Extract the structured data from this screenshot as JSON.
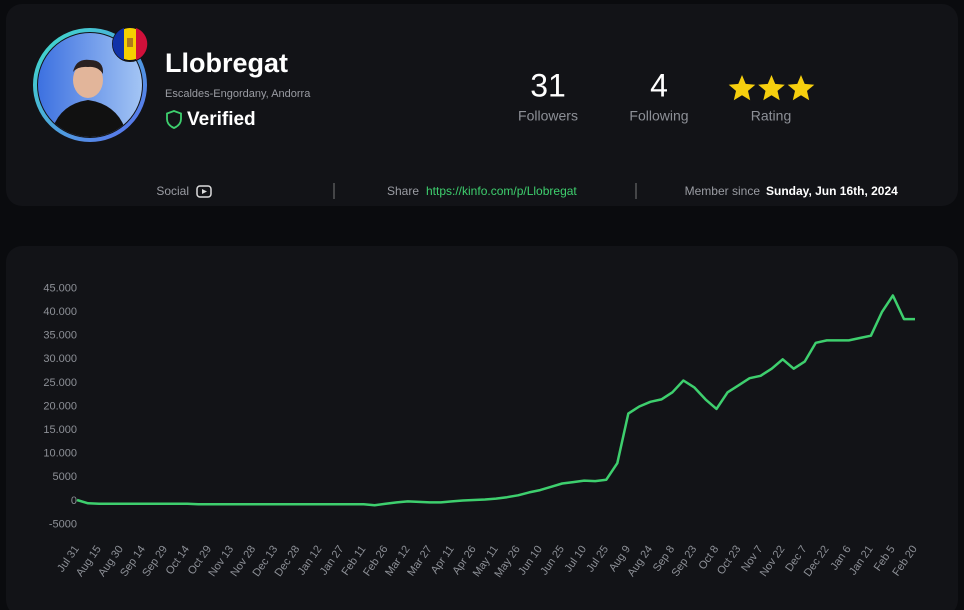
{
  "profile": {
    "name": "Llobregat",
    "location": "Escaldes-Engordany, Andorra",
    "badge": "Verified",
    "stats": [
      {
        "value": 31,
        "label": "Followers"
      },
      {
        "value": 4,
        "label": "Following"
      }
    ],
    "rating": 3,
    "rating_label": "Rating"
  },
  "links": {
    "social_label": "Social",
    "share_label": "Share",
    "share_url": "https://kinfo.com/p/Llobregat",
    "member_label": "Member since",
    "member_date": "Sunday, Jun 16th, 2024"
  },
  "chart_data": {
    "type": "line",
    "categories": [
      "Jul 31",
      null,
      "Aug 15",
      null,
      "Aug 30",
      null,
      "Sep 14",
      null,
      "Sep 29",
      null,
      "Oct 14",
      null,
      "Oct 29",
      null,
      "Nov 13",
      null,
      "Nov 28",
      null,
      "Dec 13",
      null,
      "Dec 28",
      null,
      "Jan 12",
      null,
      "Jan 27",
      null,
      "Feb 11",
      null,
      "Feb 26",
      null,
      "Mar 12",
      null,
      "Mar 27",
      null,
      "Apr 11",
      null,
      "Apr 26",
      null,
      "May 11",
      null,
      "May 26",
      null,
      "Jun 10",
      null,
      "Jun 25",
      null,
      "Jul 10",
      null,
      "Jul 25",
      null,
      "Aug 9",
      null,
      "Aug 24",
      null,
      "Sep 8",
      null,
      "Sep 23",
      null,
      "Oct 8",
      null,
      "Oct 23",
      null,
      "Nov 7",
      null,
      "Nov 22",
      null,
      "Dec 7",
      null,
      "Dec 22",
      null,
      "Jan 6",
      null,
      "Jan 21",
      null,
      "Feb 5",
      null,
      "Feb 20"
    ],
    "series": [
      {
        "color": "#3ecf6e",
        "values": [
          200,
          -500,
          -600,
          -600,
          -600,
          -600,
          -600,
          -600,
          -600,
          -600,
          -600,
          -700,
          -700,
          -700,
          -700,
          -700,
          -700,
          -700,
          -700,
          -700,
          -700,
          -700,
          -700,
          -700,
          -700,
          -700,
          -700,
          -900,
          -600,
          -300,
          -100,
          -200,
          -300,
          -300,
          -100,
          100,
          200,
          300,
          500,
          800,
          1200,
          1800,
          2300,
          3000,
          3700,
          4000,
          4300,
          4200,
          4500,
          8000,
          18500,
          20000,
          21000,
          21500,
          23000,
          25500,
          24000,
          21500,
          19500,
          23000,
          24500,
          26000,
          26500,
          28000,
          30000,
          28000,
          29500,
          33500,
          34000,
          34000,
          34000,
          34500,
          35000,
          40000,
          43500,
          38500,
          38500
        ]
      }
    ],
    "ylim": [
      -7000,
      47000
    ],
    "yticks": [
      {
        "value": 45000,
        "label": "45.000"
      },
      {
        "value": 40000,
        "label": "40.000"
      },
      {
        "value": 35000,
        "label": "35.000"
      },
      {
        "value": 30000,
        "label": "30.000"
      },
      {
        "value": 25000,
        "label": "25.000"
      },
      {
        "value": 20000,
        "label": "20.000"
      },
      {
        "value": 15000,
        "label": "15.000"
      },
      {
        "value": 10000,
        "label": "10.000"
      },
      5000,
      0,
      -5000
    ],
    "grid": false
  }
}
